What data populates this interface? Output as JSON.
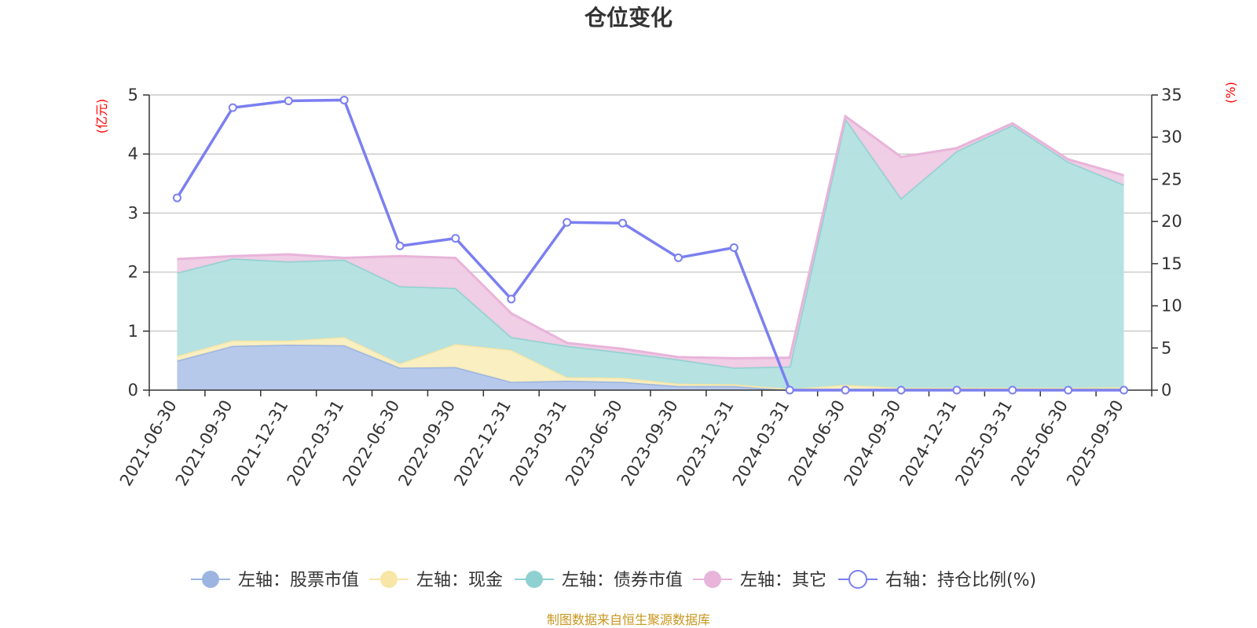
{
  "chart_data": {
    "type": "area",
    "title": "仓位变化",
    "left_axis_unit": "(亿元)",
    "right_axis_unit": "(%)",
    "source": "制图数据来自恒生聚源数据库",
    "categories": [
      "2021-06-30",
      "2021-09-30",
      "2021-12-31",
      "2022-03-31",
      "2022-06-30",
      "2022-09-30",
      "2022-12-31",
      "2023-03-31",
      "2023-06-30",
      "2023-09-30",
      "2023-12-31",
      "2024-03-31",
      "2024-06-30",
      "2024-09-30",
      "2024-12-31",
      "2025-03-31",
      "2025-06-30",
      "2025-09-30"
    ],
    "left_axis": {
      "min": 0,
      "max": 5,
      "ticks": [
        0,
        1,
        2,
        3,
        4,
        5
      ]
    },
    "right_axis": {
      "min": 0,
      "max": 35,
      "ticks": [
        0,
        5,
        10,
        15,
        20,
        25,
        30,
        35
      ]
    },
    "grid": true,
    "legend_position": "bottom",
    "series": [
      {
        "name": "左轴：股票市值",
        "type": "stacked-area",
        "axis": "left",
        "color": "#9bb5e0",
        "fill": "#b3c6ea",
        "values": [
          0.5,
          0.75,
          0.77,
          0.76,
          0.38,
          0.39,
          0.14,
          0.16,
          0.14,
          0.07,
          0.07,
          0.0,
          0.0,
          0.0,
          0.0,
          0.0,
          0.0,
          0.0
        ]
      },
      {
        "name": "左轴：现金",
        "type": "stacked-area",
        "axis": "left",
        "color": "#f7e6a6",
        "fill": "#faeebe",
        "values": [
          0.08,
          0.09,
          0.07,
          0.14,
          0.07,
          0.39,
          0.54,
          0.06,
          0.07,
          0.04,
          0.03,
          0.02,
          0.09,
          0.04,
          0.04,
          0.04,
          0.04,
          0.05
        ]
      },
      {
        "name": "左轴：债券市值",
        "type": "stacked-area",
        "axis": "left",
        "color": "#8fd1d1",
        "fill": "#b2e0e0",
        "values": [
          1.41,
          1.39,
          1.34,
          1.31,
          1.31,
          0.95,
          0.22,
          0.53,
          0.43,
          0.41,
          0.28,
          0.38,
          4.51,
          3.21,
          4.01,
          4.45,
          3.83,
          3.43
        ]
      },
      {
        "name": "左轴：其它",
        "type": "stacked-area",
        "axis": "left",
        "color": "#e8b4da",
        "fill": "#efcbe4",
        "values": [
          0.23,
          0.04,
          0.12,
          0.03,
          0.51,
          0.51,
          0.4,
          0.05,
          0.06,
          0.04,
          0.16,
          0.15,
          0.04,
          0.7,
          0.05,
          0.03,
          0.04,
          0.16
        ]
      },
      {
        "name": "右轴：持仓比例(%)",
        "type": "line",
        "axis": "right",
        "color": "#7b7ff0",
        "values": [
          22.8,
          33.5,
          34.3,
          34.4,
          17.1,
          18.0,
          10.8,
          19.9,
          19.8,
          15.7,
          16.9,
          0.0,
          0.0,
          0.0,
          0.0,
          0.0,
          0.0,
          0.0
        ]
      }
    ]
  }
}
